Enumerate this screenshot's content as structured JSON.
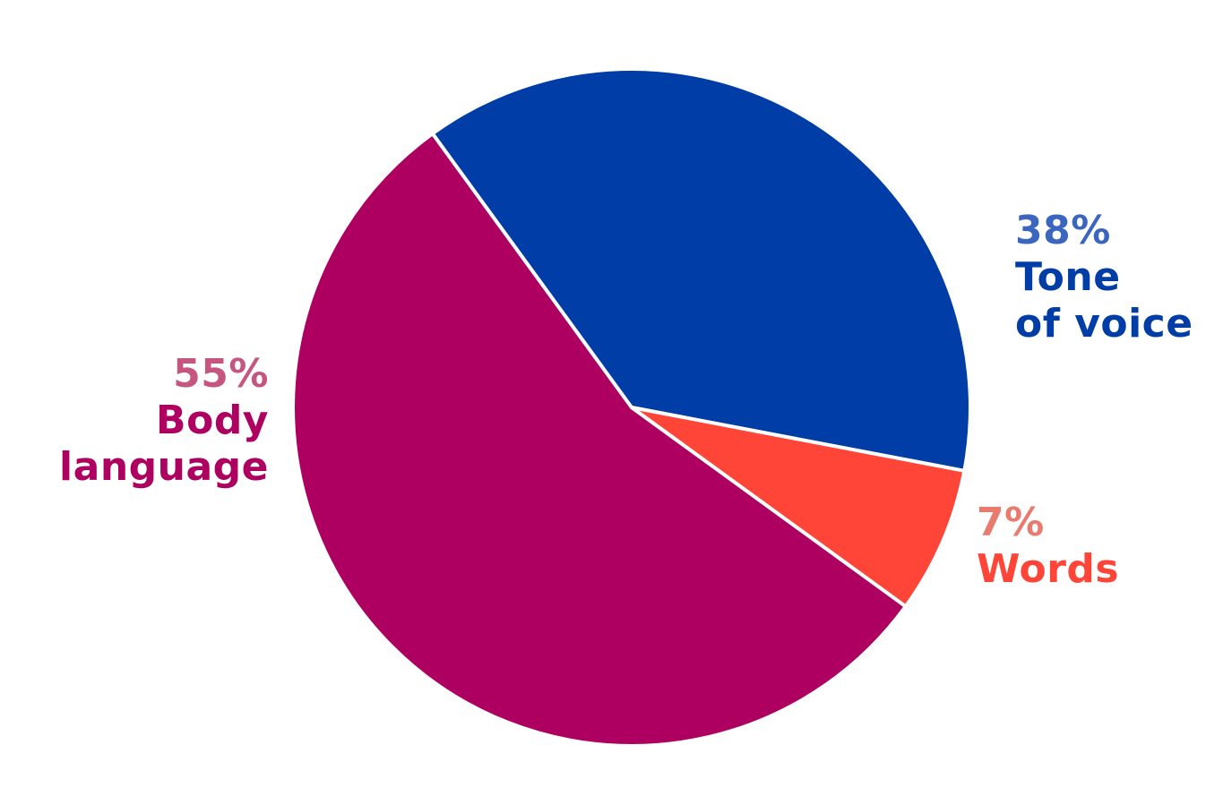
{
  "chart_data": {
    "type": "pie",
    "categories": [
      "Body language",
      "Tone of voice",
      "Words"
    ],
    "values": [
      55,
      38,
      7
    ],
    "value_labels": [
      "55%",
      "38%",
      "7%"
    ],
    "colors": [
      "#ae0060",
      "#003da6",
      "#ff4438"
    ],
    "label_colors": [
      "#c4567f",
      "#3b66c0",
      "#e97a6e"
    ]
  }
}
